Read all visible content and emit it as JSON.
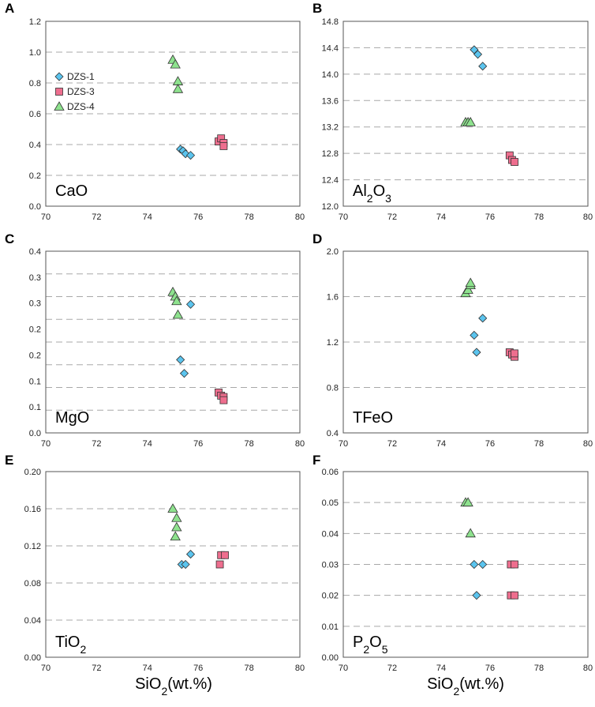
{
  "chart_data": [
    {
      "type": "scatter",
      "panel": "A",
      "ylabel": "CaO",
      "x_range": [
        70,
        80
      ],
      "y_range": [
        0,
        1.2
      ],
      "x_ticks": [
        "70",
        "72",
        "74",
        "76",
        "78",
        "80"
      ],
      "y_ticks": [
        "0.0",
        "0.2",
        "0.4",
        "0.6",
        "0.8",
        "1.0",
        "1.2"
      ],
      "gridlines": [
        0.2,
        0.4,
        0.6,
        0.8,
        1.0
      ],
      "legend": [
        {
          "name": "DZS-1",
          "marker": "diamond"
        },
        {
          "name": "DZS-3",
          "marker": "square"
        },
        {
          "name": "DZS-4",
          "marker": "triangle"
        }
      ],
      "series": [
        {
          "name": "DZS-1",
          "x": [
            75.3,
            75.4,
            75.5,
            75.7
          ],
          "y": [
            0.37,
            0.36,
            0.34,
            0.33
          ]
        },
        {
          "name": "DZS-3",
          "x": [
            76.8,
            76.9,
            77.0,
            77.0
          ],
          "y": [
            0.42,
            0.44,
            0.41,
            0.39
          ]
        },
        {
          "name": "DZS-4",
          "x": [
            75.0,
            75.1,
            75.2,
            75.2
          ],
          "y": [
            0.95,
            0.92,
            0.81,
            0.76
          ]
        }
      ]
    },
    {
      "type": "scatter",
      "panel": "B",
      "ylabel_main": "Al",
      "ylabel_sub1": "2",
      "ylabel_mid": "O",
      "ylabel_sub2": "3",
      "x_range": [
        70,
        80
      ],
      "y_range": [
        12.0,
        14.8
      ],
      "x_ticks": [
        "70",
        "72",
        "74",
        "76",
        "78",
        "80"
      ],
      "y_ticks": [
        "12.0",
        "12.4",
        "12.8",
        "13.2",
        "13.6",
        "14.0",
        "14.4",
        "14.8"
      ],
      "gridlines": [
        12.4,
        12.8,
        13.2,
        13.6,
        14.0,
        14.4
      ],
      "series": [
        {
          "name": "DZS-1",
          "x": [
            75.35,
            75.5,
            75.7
          ],
          "y": [
            14.37,
            14.3,
            14.12
          ]
        },
        {
          "name": "DZS-3",
          "x": [
            76.8,
            76.9,
            77.0
          ],
          "y": [
            12.77,
            12.7,
            12.67
          ]
        },
        {
          "name": "DZS-4",
          "x": [
            75.0,
            75.1,
            75.2
          ],
          "y": [
            13.27,
            13.27,
            13.27
          ]
        }
      ]
    },
    {
      "type": "scatter",
      "panel": "C",
      "ylabel": "MgO",
      "x_range": [
        70,
        80
      ],
      "y_range": [
        0,
        0.4
      ],
      "x_ticks": [
        "70",
        "72",
        "74",
        "76",
        "78",
        "80"
      ],
      "y_ticks": [
        "0.0",
        "0.1",
        "0.1",
        "0.2",
        "0.2",
        "0.3",
        "0.3",
        "0.4"
      ],
      "gridlines": [
        0.05,
        0.1,
        0.15,
        0.2,
        0.25,
        0.3,
        0.35
      ],
      "series": [
        {
          "name": "DZS-1",
          "x": [
            75.7,
            75.3,
            75.45
          ],
          "y": [
            0.283,
            0.161,
            0.131
          ]
        },
        {
          "name": "DZS-3",
          "x": [
            76.8,
            76.9,
            77.0,
            77.0
          ],
          "y": [
            0.089,
            0.082,
            0.079,
            0.072
          ]
        },
        {
          "name": "DZS-4",
          "x": [
            75.0,
            75.1,
            75.15,
            75.2
          ],
          "y": [
            0.31,
            0.3,
            0.29,
            0.26
          ]
        }
      ]
    },
    {
      "type": "scatter",
      "panel": "D",
      "ylabel": "TFeO",
      "x_range": [
        70,
        80
      ],
      "y_range": [
        0.4,
        2.0
      ],
      "x_ticks": [
        "70",
        "72",
        "74",
        "76",
        "78",
        "80"
      ],
      "y_ticks": [
        "0.4",
        "0.8",
        "1.2",
        "1.6",
        "2.0"
      ],
      "gridlines": [
        0.8,
        1.2,
        1.6
      ],
      "series": [
        {
          "name": "DZS-1",
          "x": [
            75.7,
            75.35,
            75.45
          ],
          "y": [
            1.41,
            1.26,
            1.11
          ]
        },
        {
          "name": "DZS-3",
          "x": [
            76.8,
            76.9,
            77.0,
            77.0
          ],
          "y": [
            1.11,
            1.09,
            1.07,
            1.1
          ]
        },
        {
          "name": "DZS-4",
          "x": [
            75.0,
            75.1,
            75.2,
            75.2
          ],
          "y": [
            1.63,
            1.66,
            1.7,
            1.72
          ]
        }
      ]
    },
    {
      "type": "scatter",
      "panel": "E",
      "ylabel_main": "TiO",
      "ylabel_sub1": "2",
      "x_range": [
        70,
        80
      ],
      "y_range": [
        0,
        0.2
      ],
      "x_ticks": [
        "70",
        "72",
        "74",
        "76",
        "78",
        "80"
      ],
      "y_ticks": [
        "0.00",
        "0.04",
        "0.08",
        "0.12",
        "0.16",
        "0.20"
      ],
      "gridlines": [
        0.04,
        0.08,
        0.12,
        0.16
      ],
      "series": [
        {
          "name": "DZS-1",
          "x": [
            75.35,
            75.5,
            75.7
          ],
          "y": [
            0.1,
            0.1,
            0.111
          ]
        },
        {
          "name": "DZS-3",
          "x": [
            76.85,
            76.9,
            77.05
          ],
          "y": [
            0.1,
            0.11,
            0.11
          ]
        },
        {
          "name": "DZS-4",
          "x": [
            75.0,
            75.15,
            75.15,
            75.1
          ],
          "y": [
            0.16,
            0.15,
            0.14,
            0.13
          ]
        }
      ]
    },
    {
      "type": "scatter",
      "panel": "F",
      "ylabel_main": "P",
      "ylabel_sub1": "2",
      "ylabel_mid": "O",
      "ylabel_sub2": "5",
      "x_range": [
        70,
        80
      ],
      "y_range": [
        0,
        0.06
      ],
      "x_ticks": [
        "70",
        "72",
        "74",
        "76",
        "78",
        "80"
      ],
      "y_ticks": [
        "0.00",
        "0.01",
        "0.02",
        "0.03",
        "0.04",
        "0.05",
        "0.06"
      ],
      "gridlines": [
        0.01,
        0.02,
        0.03,
        0.04,
        0.05
      ],
      "series": [
        {
          "name": "DZS-1",
          "x": [
            75.35,
            75.7,
            75.45
          ],
          "y": [
            0.03,
            0.03,
            0.02
          ]
        },
        {
          "name": "DZS-3",
          "x": [
            76.85,
            77.0,
            76.85,
            77.0
          ],
          "y": [
            0.03,
            0.03,
            0.02,
            0.02
          ]
        },
        {
          "name": "DZS-4",
          "x": [
            75.0,
            75.1,
            75.2
          ],
          "y": [
            0.05,
            0.05,
            0.04
          ]
        }
      ]
    }
  ],
  "xlabel_main": "SiO",
  "xlabel_sub": "2",
  "xlabel_unit": "(wt.%)",
  "colors": {
    "DZS-1": "#5bc4ee",
    "DZS-3": "#ee6e8e",
    "DZS-4": "#8ee28e",
    "grid": "#a8a8a8",
    "frame": "#555555"
  }
}
